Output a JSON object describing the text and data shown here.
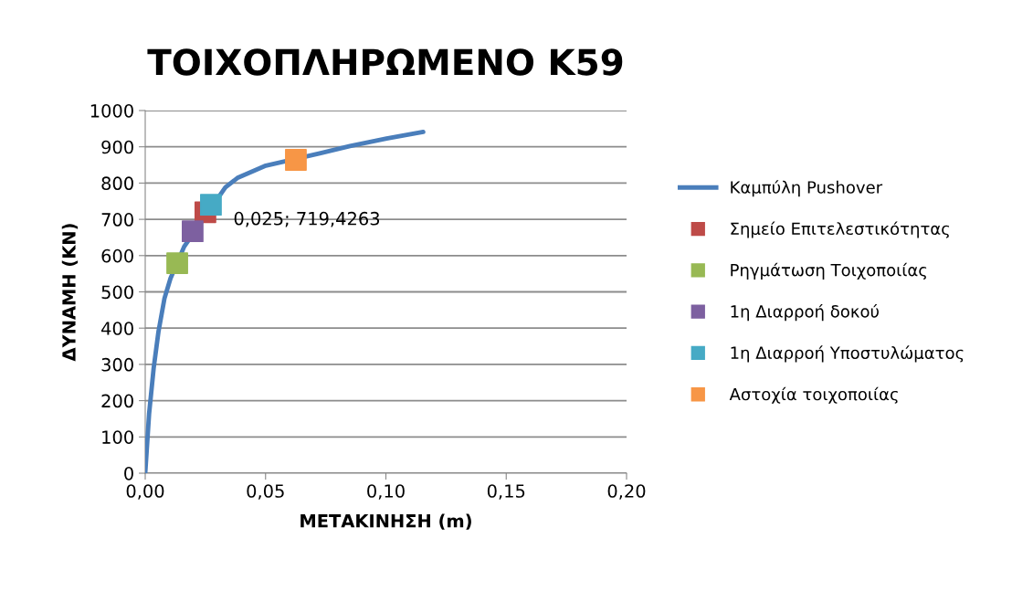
{
  "chart_data": {
    "type": "line",
    "title": "ΤΟΙΧΟΠΛΗΡΩΜΕΝΟ Κ59",
    "xlabel": "ΜΕΤΑΚΙΝΗΣΗ (m)",
    "ylabel": "ΔΥΝΑΜΗ (KN)",
    "xlim": [
      0,
      0.2
    ],
    "ylim": [
      0,
      1000
    ],
    "xticks": [
      {
        "value": 0,
        "label": "0,00"
      },
      {
        "value": 0.05,
        "label": "0,05"
      },
      {
        "value": 0.1,
        "label": "0,10"
      },
      {
        "value": 0.15,
        "label": "0,15"
      },
      {
        "value": 0.2,
        "label": "0,20"
      }
    ],
    "yticks": [
      0,
      100,
      200,
      300,
      400,
      500,
      600,
      700,
      800,
      900,
      1000
    ],
    "grid": "y",
    "legend": "right",
    "annotations": [
      {
        "text": "0,025; 719,4263",
        "x": 0.025,
        "y": 719.4263
      }
    ],
    "series": [
      {
        "name": "Καμπύλη Pushover",
        "color": "#4a7ebb",
        "marker": "none",
        "x": [
          0,
          0.0016,
          0.0035,
          0.0055,
          0.008,
          0.0105,
          0.0162,
          0.0333,
          0.0383,
          0.0497,
          0.0725,
          0.0851,
          0.1003,
          0.1155
        ],
        "values": [
          0,
          163,
          289,
          390,
          482,
          537,
          625,
          788,
          814,
          847,
          882,
          902,
          923,
          941
        ]
      },
      {
        "name": "Σημείο Επιτελεστικότητας",
        "type": "scatter",
        "color": "#be4b48",
        "marker": "square",
        "x": [
          0.025
        ],
        "values": [
          719.4263
        ]
      },
      {
        "name": "Ρηγμάτωση Τοιχοποιίας",
        "type": "scatter",
        "color": "#98b954",
        "marker": "square",
        "x": [
          0.0133
        ],
        "values": [
          579
        ]
      },
      {
        "name": "1η Διαρροή δοκού",
        "type": "scatter",
        "color": "#7d60a0",
        "marker": "square",
        "x": [
          0.0197
        ],
        "values": [
          667
        ]
      },
      {
        "name": "1η Διαρροή Υποστυλώματος",
        "type": "scatter",
        "color": "#46aac5",
        "marker": "square",
        "x": [
          0.0273
        ],
        "values": [
          740
        ]
      },
      {
        "name": "Αστοχία τοιχοποιίας",
        "type": "scatter",
        "color": "#f79646",
        "marker": "square",
        "x": [
          0.0626
        ],
        "values": [
          864
        ]
      }
    ]
  }
}
